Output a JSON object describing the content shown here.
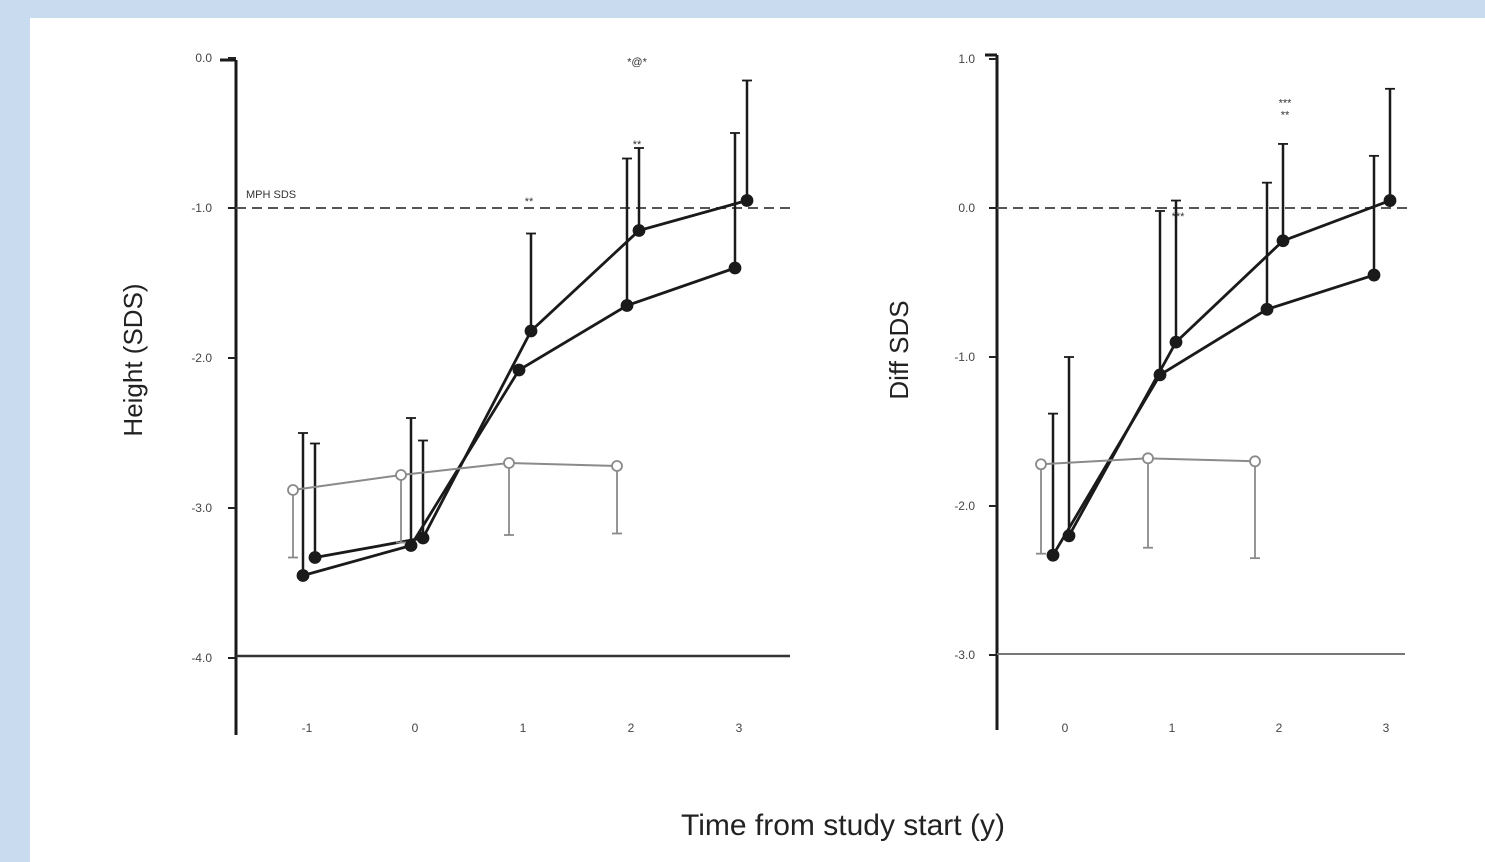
{
  "figure": {
    "xlabel": "Time from study start (y)"
  },
  "colors": {
    "background": "#c9dcef",
    "panel": "#ffffff",
    "series_dark": "#1a1a1a",
    "series_control": "#8a8a8a"
  },
  "chart_data": [
    {
      "type": "line",
      "title": "",
      "ylabel": "Height (SDS)",
      "xlabel": "",
      "x_ticks": [
        "-1",
        "0",
        "1",
        "2",
        "3"
      ],
      "y_ticks": [
        "0.0",
        "-1.0",
        "-2.0",
        "-3.0",
        "-4.0"
      ],
      "ylim": [
        -4.5,
        0.2
      ],
      "reference_line": {
        "label": "MPH SDS",
        "y": -1.0
      },
      "series": [
        {
          "marker": "filled-circle",
          "points": [
            {
              "x": -1,
              "y": -3.33,
              "err": 0.76
            },
            {
              "x": 0,
              "y": -3.2,
              "err": 0.65
            },
            {
              "x": 1,
              "y": -1.82,
              "err": 0.65
            },
            {
              "x": 2,
              "y": -1.15,
              "err": 0.55
            },
            {
              "x": 3,
              "y": -0.95,
              "err": 0.8
            }
          ]
        },
        {
          "marker": "filled-circle",
          "points": [
            {
              "x": -1,
              "y": -3.45,
              "err": 0.95
            },
            {
              "x": 0,
              "y": -3.25,
              "err": 0.85
            },
            {
              "x": 1,
              "y": -2.08,
              "err": 0.0
            },
            {
              "x": 2,
              "y": -1.65,
              "err": 0.98
            },
            {
              "x": 3,
              "y": -1.4,
              "err": 0.9
            }
          ]
        },
        {
          "marker": "open-circle",
          "points": [
            {
              "x": -1,
              "y": -2.88,
              "err": 0.45
            },
            {
              "x": 0,
              "y": -2.78,
              "err": 0.45
            },
            {
              "x": 1,
              "y": -2.7,
              "err": 0.48
            },
            {
              "x": 2,
              "y": -2.72,
              "err": 0.45
            }
          ]
        }
      ],
      "annotations": [
        {
          "x": 1,
          "y": -0.98,
          "text": "**"
        },
        {
          "x": 2,
          "y": -0.6,
          "text": "**"
        },
        {
          "x": 2,
          "y": -0.05,
          "text": "*@*"
        }
      ]
    },
    {
      "type": "line",
      "title": "",
      "ylabel": "Diff SDS",
      "xlabel": "",
      "x_ticks": [
        "0",
        "1",
        "2",
        "3"
      ],
      "y_ticks": [
        "1.0",
        "0.0",
        "-1.0",
        "-2.0",
        "-3.0"
      ],
      "ylim": [
        -3.5,
        1.0
      ],
      "reference_line": {
        "label": "",
        "y": 0.0
      },
      "series": [
        {
          "marker": "filled-circle",
          "points": [
            {
              "x": 0,
              "y": -2.2,
              "err": 1.2
            },
            {
              "x": 1,
              "y": -0.9,
              "err": 0.95
            },
            {
              "x": 2,
              "y": -0.22,
              "err": 0.65
            },
            {
              "x": 3,
              "y": 0.05,
              "err": 0.75
            }
          ]
        },
        {
          "marker": "filled-circle",
          "points": [
            {
              "x": 0,
              "y": -2.33,
              "err": 0.95
            },
            {
              "x": 1,
              "y": -1.12,
              "err": 1.1
            },
            {
              "x": 2,
              "y": -0.68,
              "err": 0.85
            },
            {
              "x": 3,
              "y": -0.45,
              "err": 0.8
            }
          ]
        },
        {
          "marker": "open-circle",
          "points": [
            {
              "x": 0,
              "y": -1.72,
              "err": 0.6
            },
            {
              "x": 1,
              "y": -1.68,
              "err": 0.6
            },
            {
              "x": 2,
              "y": -1.7,
              "err": 0.65
            }
          ]
        }
      ],
      "annotations": [
        {
          "x": 1,
          "y": -0.08,
          "text": "***"
        },
        {
          "x": 2,
          "y": 0.6,
          "text": "**"
        },
        {
          "x": 2,
          "y": 0.68,
          "text": "***"
        }
      ]
    }
  ]
}
